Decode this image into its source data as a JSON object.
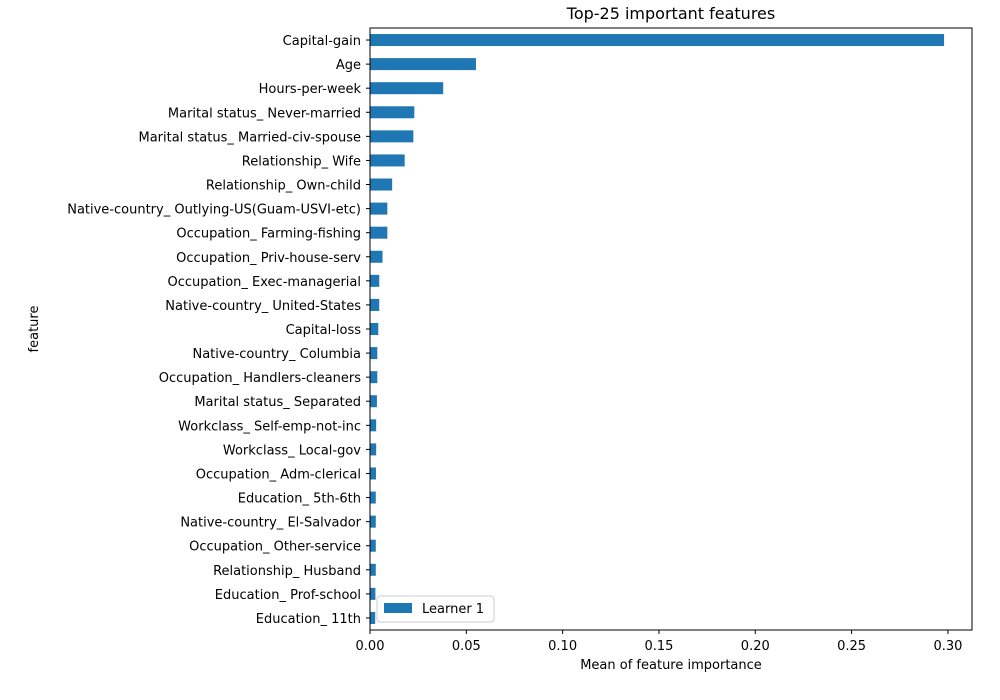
{
  "chart_data": {
    "type": "bar",
    "orientation": "horizontal",
    "title": "Top-25 important features",
    "xlabel": "Mean of feature importance",
    "ylabel": "feature",
    "xlim": [
      0.0,
      0.3125
    ],
    "xticks": [
      "0.00",
      "0.05",
      "0.10",
      "0.15",
      "0.20",
      "0.25",
      "0.30"
    ],
    "grid": false,
    "legend_position": "lower-left",
    "bar_color": "#1f77b4",
    "categories": [
      "Capital-gain",
      "Age",
      "Hours-per-week",
      "Marital status_ Never-married",
      "Marital status_ Married-civ-spouse",
      "Relationship_ Wife",
      "Relationship_ Own-child",
      "Native-country_ Outlying-US(Guam-USVI-etc)",
      "Occupation_ Farming-fishing",
      "Occupation_ Priv-house-serv",
      "Occupation_ Exec-managerial",
      "Native-country_ United-States",
      "Capital-loss",
      "Native-country_ Columbia",
      "Occupation_ Handlers-cleaners",
      "Marital status_ Separated",
      "Workclass_ Self-emp-not-inc",
      "Workclass_ Local-gov",
      "Occupation_ Adm-clerical",
      "Education_ 5th-6th",
      "Native-country_ El-Salvador",
      "Occupation_ Other-service",
      "Relationship_ Husband",
      "Education_ Prof-school",
      "Education_ 11th"
    ],
    "series": [
      {
        "name": "Learner 1",
        "values": [
          0.298,
          0.055,
          0.038,
          0.023,
          0.0225,
          0.018,
          0.0115,
          0.009,
          0.009,
          0.0065,
          0.0048,
          0.0048,
          0.0043,
          0.0038,
          0.0038,
          0.0036,
          0.0032,
          0.0032,
          0.0031,
          0.003,
          0.003,
          0.003,
          0.003,
          0.0028,
          0.0027
        ]
      }
    ]
  }
}
